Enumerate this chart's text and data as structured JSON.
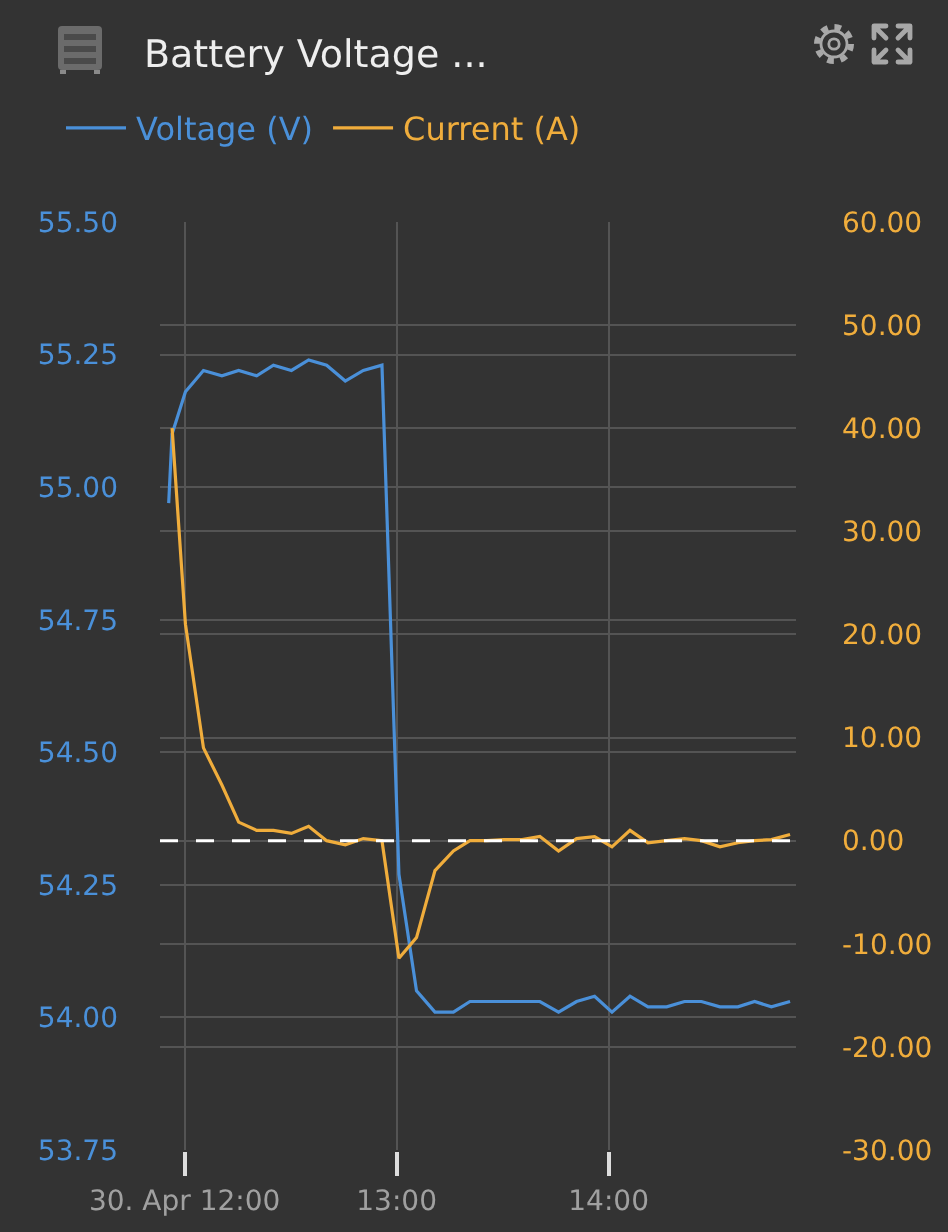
{
  "chart_data": {
    "type": "line",
    "title": "Battery Voltage ...",
    "x": [
      11.925,
      11.941,
      12.004,
      12.089,
      12.176,
      12.255,
      12.34,
      12.419,
      12.504,
      12.585,
      12.67,
      12.758,
      12.843,
      12.931,
      13.011,
      13.094,
      13.181,
      13.268,
      13.346,
      13.425,
      13.507,
      13.592,
      13.676,
      13.764,
      13.849,
      13.934,
      14.016,
      14.101,
      14.186,
      14.274,
      14.358,
      14.438,
      14.525,
      14.61,
      14.689,
      14.768,
      14.856
    ],
    "series": [
      {
        "name": "Voltage (V)",
        "color": "#4a90d9",
        "values": [
          54.97,
          55.1,
          55.18,
          55.22,
          55.21,
          55.22,
          55.21,
          55.23,
          55.22,
          55.24,
          55.23,
          55.2,
          55.22,
          55.23,
          54.27,
          54.05,
          54.01,
          54.01,
          54.03,
          54.03,
          54.03,
          54.03,
          54.03,
          54.01,
          54.03,
          54.04,
          54.01,
          54.04,
          54.02,
          54.02,
          54.03,
          54.03,
          54.02,
          54.02,
          54.03,
          54.02,
          54.03
        ]
      },
      {
        "name": "Current (A)",
        "color": "#f0ad3c",
        "axis": "y2",
        "values": [
          null,
          40,
          21,
          9,
          5.4,
          1.8,
          1.0,
          1.0,
          0.7,
          1.4,
          0,
          -0.4,
          0.2,
          0,
          -11.4,
          -9.4,
          -2.9,
          -1.0,
          0,
          0,
          0.1,
          0.1,
          0.4,
          -1.0,
          0.2,
          0.4,
          -0.6,
          1.0,
          -0.2,
          0,
          0.2,
          0,
          -0.6,
          -0.2,
          0,
          0.1,
          0.6
        ]
      }
    ],
    "xlim": [
      11.884,
      14.884
    ],
    "xticks": [
      {
        "value": 12,
        "label": "30. Apr 12:00"
      },
      {
        "value": 13,
        "label": "13:00"
      },
      {
        "value": 14,
        "label": "14:00"
      }
    ],
    "ylim": [
      53.75,
      55.5
    ],
    "yticks": [
      {
        "value": 53.75,
        "label": "53.75"
      },
      {
        "value": 54,
        "label": "54.00"
      },
      {
        "value": 54.25,
        "label": "54.25"
      },
      {
        "value": 54.5,
        "label": "54.50"
      },
      {
        "value": 54.75,
        "label": "54.75"
      },
      {
        "value": 55,
        "label": "55.00"
      },
      {
        "value": 55.25,
        "label": "55.25"
      },
      {
        "value": 55.5,
        "label": "55.50"
      }
    ],
    "y2lim": [
      -30,
      60
    ],
    "y2ticks": [
      {
        "value": -30,
        "label": "-30.00"
      },
      {
        "value": -20,
        "label": "-20.00"
      },
      {
        "value": -10,
        "label": "-10.00"
      },
      {
        "value": 0,
        "label": "0.00"
      },
      {
        "value": 10,
        "label": "10.00"
      },
      {
        "value": 20,
        "label": "20.00"
      },
      {
        "value": 30,
        "label": "30.00"
      },
      {
        "value": 40,
        "label": "40.00"
      },
      {
        "value": 50,
        "label": "50.00"
      },
      {
        "value": 60,
        "label": "60.00"
      }
    ],
    "ref_lines": [
      {
        "axis": "y2",
        "value": 0,
        "color": "#ffffff",
        "line_style": "dashed"
      }
    ],
    "grid": true,
    "legend": "top left"
  }
}
